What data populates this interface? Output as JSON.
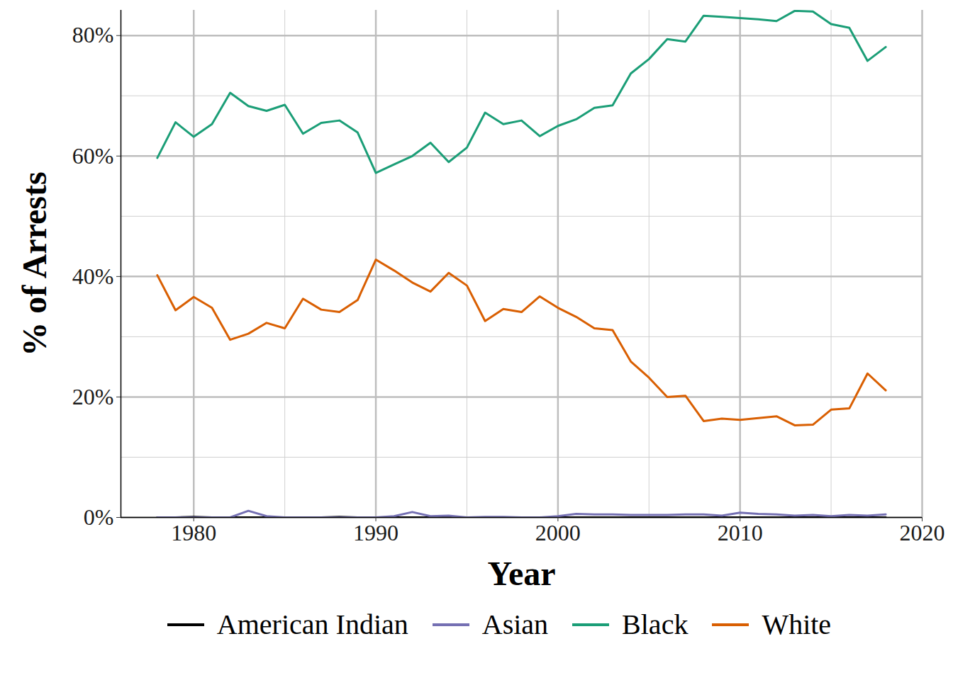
{
  "chart_data": {
    "type": "line",
    "x_label": "Year",
    "y_label": "% of Arrests",
    "x": [
      1978,
      1979,
      1980,
      1981,
      1982,
      1983,
      1984,
      1985,
      1986,
      1987,
      1988,
      1989,
      1990,
      1991,
      1992,
      1993,
      1994,
      1995,
      1996,
      1997,
      1998,
      1999,
      2000,
      2001,
      2002,
      2003,
      2004,
      2005,
      2006,
      2007,
      2008,
      2009,
      2010,
      2011,
      2012,
      2013,
      2014,
      2015,
      2016,
      2017,
      2018
    ],
    "series": [
      {
        "name": "American Indian",
        "color": "#000000",
        "values": [
          0,
          0,
          0.1,
          0,
          0,
          0,
          0,
          0,
          0,
          0,
          0.1,
          0,
          0,
          0,
          0,
          0,
          0,
          0,
          0,
          0,
          0,
          0,
          0,
          0,
          0,
          0,
          0,
          0,
          0,
          0,
          0,
          0,
          0,
          0,
          0,
          0,
          0,
          0,
          0,
          0,
          0
        ]
      },
      {
        "name": "Asian",
        "color": "#7570B3",
        "values": [
          0,
          0,
          0,
          0,
          0,
          1.1,
          0.2,
          0,
          0,
          0,
          0,
          0,
          0,
          0.2,
          0.9,
          0.2,
          0.3,
          0,
          0.1,
          0.1,
          0,
          0,
          0.2,
          0.6,
          0.5,
          0.5,
          0.4,
          0.4,
          0.4,
          0.5,
          0.5,
          0.3,
          0.8,
          0.6,
          0.5,
          0.3,
          0.4,
          0.2,
          0.4,
          0.3,
          0.5
        ]
      },
      {
        "name": "Black",
        "color": "#1B9E77",
        "values": [
          59.7,
          65.6,
          63.2,
          65.3,
          70.5,
          68.3,
          67.5,
          68.5,
          63.7,
          65.5,
          65.9,
          63.9,
          57.2,
          58.6,
          60.0,
          62.2,
          59.0,
          61.4,
          67.2,
          65.3,
          65.9,
          63.3,
          65.0,
          66.1,
          68.0,
          68.4,
          73.7,
          76.1,
          79.4,
          79.0,
          83.3,
          83.1,
          82.9,
          82.7,
          82.4,
          84.1,
          84.0,
          81.9,
          81.3,
          75.8,
          78.1
        ]
      },
      {
        "name": "White",
        "color": "#D95F02",
        "values": [
          40.2,
          34.4,
          36.6,
          34.8,
          29.5,
          30.5,
          32.3,
          31.4,
          36.3,
          34.5,
          34.1,
          36.1,
          42.8,
          41.0,
          39.0,
          37.5,
          40.6,
          38.5,
          32.6,
          34.6,
          34.1,
          36.7,
          34.8,
          33.3,
          31.4,
          31.1,
          25.9,
          23.2,
          20.0,
          20.2,
          16.0,
          16.4,
          16.2,
          16.5,
          16.8,
          15.3,
          15.4,
          17.9,
          18.1,
          23.9,
          21.1
        ]
      }
    ],
    "xlim": [
      1976,
      2020
    ],
    "xticks": [
      1980,
      1990,
      2000,
      2010,
      2020
    ],
    "ylim": [
      0,
      84.2
    ],
    "yticks": [
      {
        "value": 0,
        "label": "0%"
      },
      {
        "value": 20,
        "label": "20%"
      },
      {
        "value": 40,
        "label": "40%"
      },
      {
        "value": 60,
        "label": "60%"
      },
      {
        "value": 80,
        "label": "80%"
      }
    ],
    "grid": true,
    "legend": "bottom"
  }
}
